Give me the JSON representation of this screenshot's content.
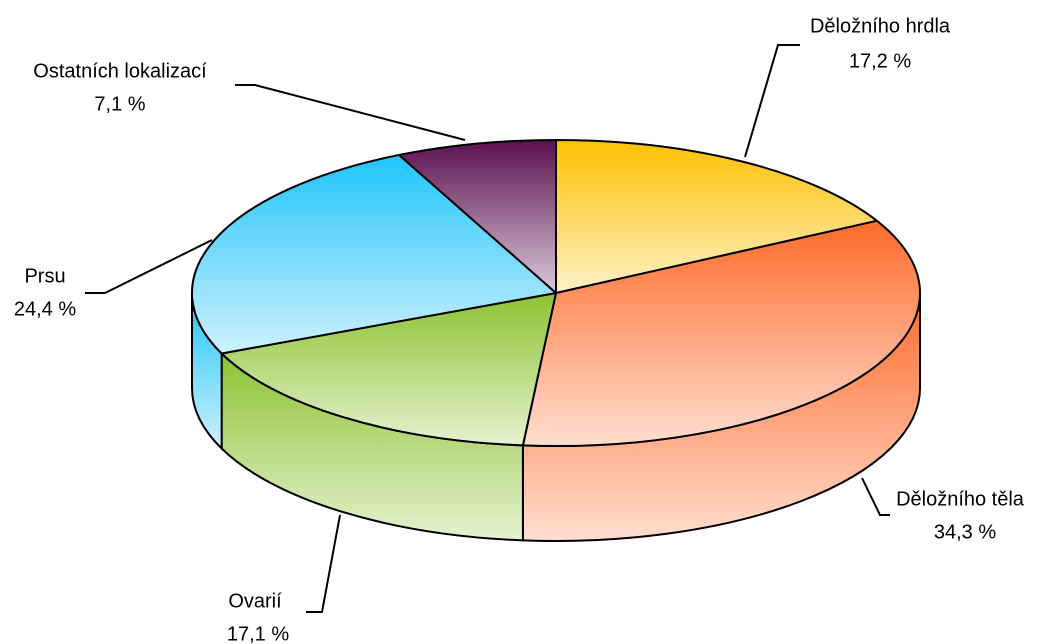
{
  "chart_data": {
    "type": "pie3d",
    "categories": [
      "Děložního hrdla",
      "Děložního těla",
      "Ovarií",
      "Prsu",
      "Ostatních lokalizací"
    ],
    "values": [
      17.2,
      34.3,
      17.1,
      24.4,
      7.1
    ],
    "value_labels": [
      "17,2 %",
      "34,3 %",
      "17,1 %",
      "24,4 %",
      "7,1 %"
    ],
    "colors": [
      "#ffc000",
      "#ff6a2a",
      "#8cc230",
      "#20c4fa",
      "#5a1050"
    ]
  }
}
